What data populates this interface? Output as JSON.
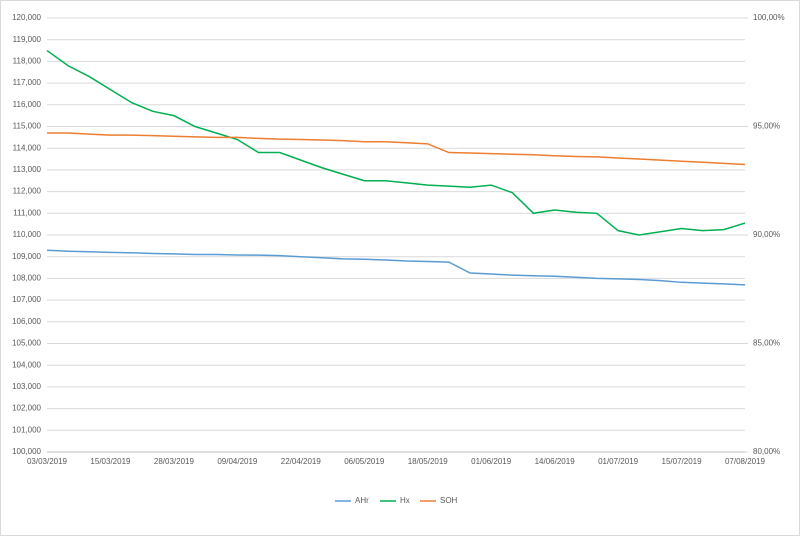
{
  "chart_data": {
    "type": "line",
    "categories": [
      "03/03/2019",
      null,
      null,
      "15/03/2019",
      null,
      null,
      "28/03/2019",
      null,
      null,
      "09/04/2019",
      null,
      null,
      "22/04/2019",
      null,
      null,
      "06/05/2019",
      null,
      null,
      "18/05/2019",
      null,
      null,
      "01/06/2019",
      null,
      null,
      "14/06/2019",
      null,
      null,
      "01/07/2019",
      null,
      null,
      "15/07/2019",
      null,
      null,
      "07/08/2019"
    ],
    "series": [
      {
        "name": "AHr",
        "color": "#5b9bd5",
        "values": [
          109300,
          109250,
          109230,
          109200,
          109180,
          109150,
          109130,
          109100,
          109100,
          109080,
          109070,
          109050,
          109000,
          108950,
          108900,
          108880,
          108850,
          108800,
          108780,
          108750,
          108250,
          108200,
          108150,
          108120,
          108100,
          108050,
          108000,
          107980,
          107950,
          107900,
          107820,
          107780,
          107750,
          107700
        ]
      },
      {
        "name": "Hx",
        "color": "#00b050",
        "values": [
          118500,
          117800,
          117300,
          116700,
          116100,
          115700,
          115500,
          115000,
          114700,
          114400,
          113800,
          113800,
          113450,
          113100,
          112800,
          112500,
          112500,
          112400,
          112300,
          112250,
          112200,
          112300,
          111950,
          111000,
          111150,
          111050,
          111000,
          110200,
          110000,
          110150,
          110300,
          110200,
          110250,
          110550
        ]
      },
      {
        "name": "SOH",
        "color": "#ed7d31",
        "axis": "y2",
        "values": [
          94.7,
          94.7,
          94.65,
          94.6,
          94.6,
          94.58,
          94.55,
          94.52,
          94.5,
          94.5,
          94.45,
          94.42,
          94.4,
          94.38,
          94.35,
          94.3,
          94.3,
          94.25,
          94.2,
          93.8,
          93.78,
          93.75,
          93.72,
          93.7,
          93.65,
          93.62,
          93.6,
          93.55,
          93.5,
          93.45,
          93.4,
          93.35,
          93.3,
          93.25
        ]
      }
    ],
    "ylim": [
      100000,
      120000
    ],
    "yticks": [
      {
        "value": 100000,
        "label": "100,000"
      },
      {
        "value": 101000,
        "label": "101,000"
      },
      {
        "value": 102000,
        "label": "102,000"
      },
      {
        "value": 103000,
        "label": "103,000"
      },
      {
        "value": 104000,
        "label": "104,000"
      },
      {
        "value": 105000,
        "label": "105,000"
      },
      {
        "value": 106000,
        "label": "106,000"
      },
      {
        "value": 107000,
        "label": "107,000"
      },
      {
        "value": 108000,
        "label": "108,000"
      },
      {
        "value": 109000,
        "label": "109,000"
      },
      {
        "value": 110000,
        "label": "110,000"
      },
      {
        "value": 111000,
        "label": "111,000"
      },
      {
        "value": 112000,
        "label": "112,000"
      },
      {
        "value": 113000,
        "label": "113,000"
      },
      {
        "value": 114000,
        "label": "114,000"
      },
      {
        "value": 115000,
        "label": "115,000"
      },
      {
        "value": 116000,
        "label": "116,000"
      },
      {
        "value": 117000,
        "label": "117,000"
      },
      {
        "value": 118000,
        "label": "118,000"
      },
      {
        "value": 119000,
        "label": "119,000"
      },
      {
        "value": 120000,
        "label": "120,000"
      }
    ],
    "y2lim": [
      80,
      100
    ],
    "y2ticks": [
      {
        "value": 80,
        "label": "80,00%"
      },
      {
        "value": 85,
        "label": "85,00%"
      },
      {
        "value": 90,
        "label": "90,00%"
      },
      {
        "value": 95,
        "label": "95,00%"
      },
      {
        "value": 100,
        "label": "100,00%"
      }
    ],
    "grid": true,
    "legend": "bottom"
  }
}
